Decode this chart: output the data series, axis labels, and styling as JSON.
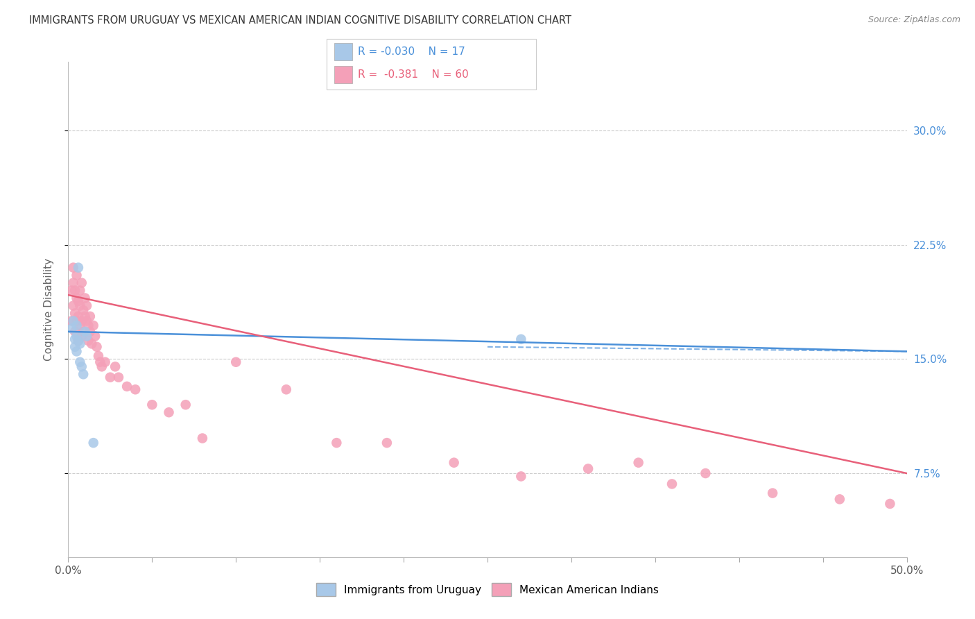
{
  "title": "IMMIGRANTS FROM URUGUAY VS MEXICAN AMERICAN INDIAN COGNITIVE DISABILITY CORRELATION CHART",
  "source": "Source: ZipAtlas.com",
  "ylabel": "Cognitive Disability",
  "ytick_labels": [
    "7.5%",
    "15.0%",
    "22.5%",
    "30.0%"
  ],
  "ytick_values": [
    0.075,
    0.15,
    0.225,
    0.3
  ],
  "xlim": [
    0.0,
    0.5
  ],
  "ylim": [
    0.02,
    0.345
  ],
  "legend_label_blue": "Immigrants from Uruguay",
  "legend_label_pink": "Mexican American Indians",
  "R_blue": "-0.030",
  "N_blue": "17",
  "R_pink": "-0.381",
  "N_pink": "60",
  "color_blue": "#a8c8e8",
  "color_pink": "#f4a0b8",
  "line_color_blue": "#4a90d9",
  "line_color_pink": "#e8607a",
  "background_color": "#ffffff",
  "grid_color": "#cccccc",
  "uruguay_x": [
    0.002,
    0.003,
    0.004,
    0.004,
    0.005,
    0.005,
    0.005,
    0.006,
    0.006,
    0.007,
    0.007,
    0.008,
    0.009,
    0.01,
    0.011,
    0.015,
    0.27
  ],
  "uruguay_y": [
    0.17,
    0.175,
    0.163,
    0.158,
    0.172,
    0.165,
    0.155,
    0.162,
    0.21,
    0.16,
    0.148,
    0.145,
    0.14,
    0.168,
    0.165,
    0.095,
    0.163
  ],
  "mexican_x": [
    0.002,
    0.002,
    0.003,
    0.003,
    0.003,
    0.004,
    0.004,
    0.004,
    0.005,
    0.005,
    0.005,
    0.006,
    0.006,
    0.006,
    0.007,
    0.007,
    0.007,
    0.008,
    0.008,
    0.008,
    0.009,
    0.009,
    0.01,
    0.01,
    0.011,
    0.011,
    0.012,
    0.012,
    0.013,
    0.013,
    0.014,
    0.015,
    0.016,
    0.017,
    0.018,
    0.019,
    0.02,
    0.022,
    0.025,
    0.028,
    0.03,
    0.035,
    0.04,
    0.05,
    0.06,
    0.07,
    0.08,
    0.1,
    0.13,
    0.16,
    0.19,
    0.23,
    0.27,
    0.31,
    0.36,
    0.42,
    0.46,
    0.49,
    0.34,
    0.38
  ],
  "mexican_y": [
    0.175,
    0.195,
    0.21,
    0.185,
    0.2,
    0.18,
    0.195,
    0.168,
    0.175,
    0.19,
    0.205,
    0.162,
    0.178,
    0.188,
    0.172,
    0.185,
    0.195,
    0.165,
    0.175,
    0.2,
    0.168,
    0.182,
    0.178,
    0.19,
    0.175,
    0.185,
    0.162,
    0.172,
    0.168,
    0.178,
    0.16,
    0.172,
    0.165,
    0.158,
    0.152,
    0.148,
    0.145,
    0.148,
    0.138,
    0.145,
    0.138,
    0.132,
    0.13,
    0.12,
    0.115,
    0.12,
    0.098,
    0.148,
    0.13,
    0.095,
    0.095,
    0.082,
    0.073,
    0.078,
    0.068,
    0.062,
    0.058,
    0.055,
    0.082,
    0.075
  ],
  "blue_line_x": [
    0.0,
    0.5
  ],
  "blue_line_y": [
    0.168,
    0.155
  ],
  "pink_line_x": [
    0.0,
    0.5
  ],
  "pink_line_y": [
    0.192,
    0.075
  ],
  "dashed_line_x": [
    0.25,
    0.5
  ],
  "dashed_line_y": [
    0.158,
    0.155
  ]
}
